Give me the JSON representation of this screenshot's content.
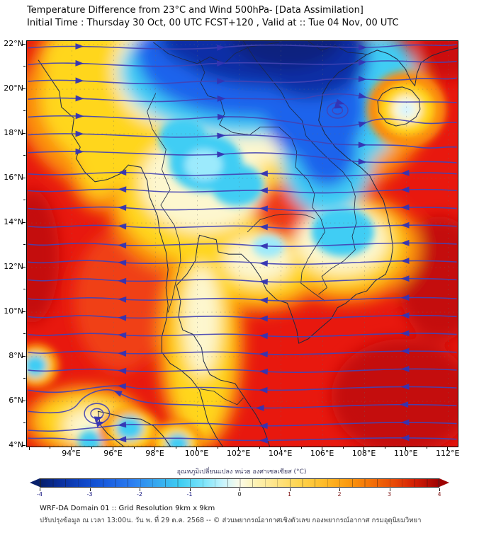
{
  "title": {
    "line1": "Temperature Difference from 23°C and Wind 500hPa- [Data Assimilation]",
    "line2": "Initial Time : Thursday 30 Oct, 00 UTC FCST+120 , Valid at ::  Tue 04 Nov, 00 UTC"
  },
  "map": {
    "lat_ticks": [
      "22°N",
      "20°N",
      "18°N",
      "16°N",
      "14°N",
      "12°N",
      "10°N",
      "8°N",
      "6°N",
      "4°N"
    ],
    "lat_values": [
      22,
      20,
      18,
      16,
      14,
      12,
      10,
      8,
      6,
      4
    ],
    "lon_ticks": [
      "94°E",
      "96°E",
      "98°E",
      "100°E",
      "102°E",
      "104°E",
      "106°E",
      "108°E",
      "110°E",
      "112°E"
    ],
    "lon_values": [
      94,
      96,
      98,
      100,
      102,
      104,
      106,
      108,
      110,
      112
    ],
    "extent": {
      "lon_min": 91.85,
      "lon_max": 112.45,
      "lat_min": 3.97,
      "lat_max": 22.16
    }
  },
  "colorbar": {
    "title": "อุณหภูมิเปลี่ยนแปลง หน่วย องศาเซลเซียส (°C)",
    "ticks": [
      "-4",
      "-3",
      "-2",
      "-1",
      "0",
      "1",
      "2",
      "3",
      "4"
    ],
    "min": -4,
    "max": 4,
    "palette": [
      "#071f6b",
      "#0f47c8",
      "#2b7df0",
      "#3ecdf2",
      "#c9f4fc",
      "#fbfbe8",
      "#fed44e",
      "#fb9b0f",
      "#e74806",
      "#9e0202"
    ]
  },
  "footer": {
    "line1": "WRF-DA Domain 01 :: Grid Resolution 9km x 9km",
    "line2": "ปรับปรุงข้อมูล ณ เวลา 13:00น. วัน พ. ที่ 29 ต.ค. 2568 -- © ส่วนพยากรณ์อากาศเชิงตัวเลข กองพยากรณ์อากาศ กรมอุตุนิยมวิทยา"
  },
  "colors": {
    "warm_base": "#e8180e",
    "cold_core": "#0b2fa6",
    "streamline": "#4444b4",
    "coastline": "#1d2742"
  },
  "chart_data": {
    "type": "heatmap",
    "subtype": "filled-contour weather map with wind streamlines",
    "title": "Temperature Difference from 23°C and Wind 500hPa- [Data Assimilation]",
    "region": "Thailand / Indochina / South China Sea",
    "x_axis": {
      "name": "longitude",
      "ticks": [
        94,
        96,
        98,
        100,
        102,
        104,
        106,
        108,
        110,
        112
      ],
      "range": [
        91.85,
        112.45
      ]
    },
    "y_axis": {
      "name": "latitude",
      "ticks": [
        22,
        20,
        18,
        16,
        14,
        12,
        10,
        8,
        6,
        4
      ],
      "range": [
        3.97,
        22.16
      ]
    },
    "colorbar": {
      "label": "อุณหภูมิเปลี่ยนแปลง หน่วย องศาเซลเซียส (°C)",
      "units": "°C",
      "ticks": [
        -4,
        -3,
        -2,
        -1,
        0,
        1,
        2,
        3,
        4
      ],
      "range": [
        -4,
        4
      ]
    },
    "fields": [
      "temperature difference (shaded)",
      "500 hPa wind (streamlines)"
    ],
    "notable_features": [
      {
        "feature": "deep cold anomaly (≈ -4°C)",
        "approx_lon": 104,
        "approx_lat": 21.8
      },
      {
        "feature": "cold tongue down Vietnam coast (≈ -1 to -2°C)",
        "approx_lon": 106.3,
        "approx_lat": 15.5
      },
      {
        "feature": "cool patches central/northern Thailand (≈ -1°C)",
        "approx_lon": 100.4,
        "approx_lat": 16.7
      },
      {
        "feature": "warm anomaly over most of domain (≈ +3 to +4°C)",
        "approx_lon": 108,
        "approx_lat": 8
      },
      {
        "feature": "warm/neutral eye with ring structure",
        "approx_lon": 110,
        "approx_lat": 19.1
      },
      {
        "feature": "closed circulation in streamlines",
        "approx_lon": 106.7,
        "approx_lat": 19
      },
      {
        "feature": "closed circulation in streamlines (southwest)",
        "approx_lon": 95.2,
        "approx_lat": 5.4
      },
      {
        "feature": "yellow band along Malay peninsula",
        "approx_lon": 100.1,
        "approx_lat": 8.7
      }
    ]
  }
}
